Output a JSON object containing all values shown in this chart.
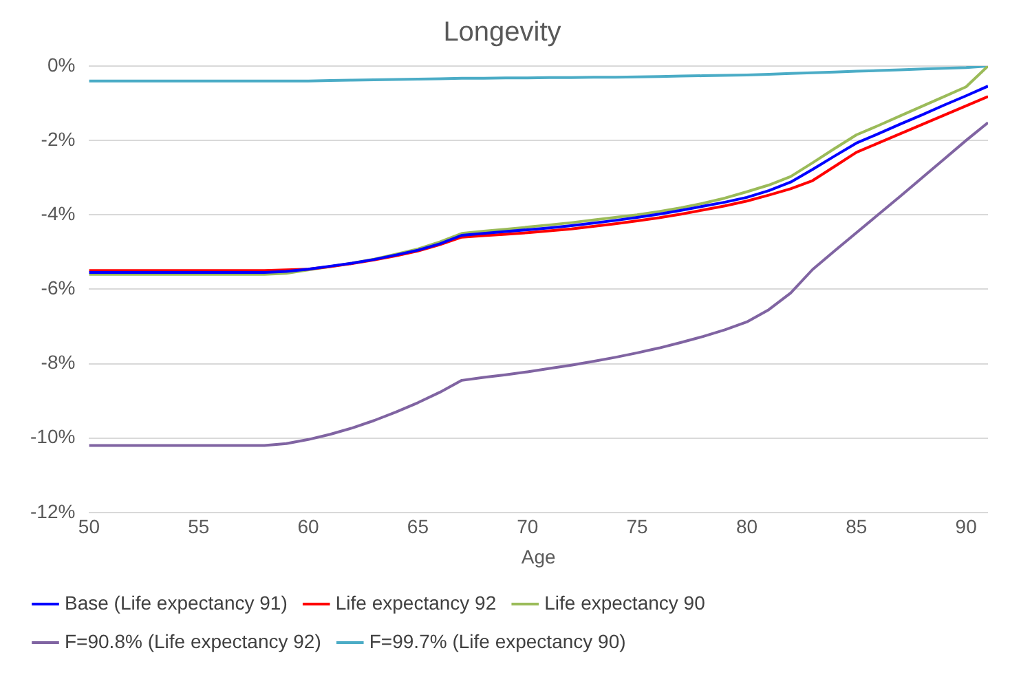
{
  "chart_data": {
    "type": "line",
    "title": "Longevity",
    "xlabel": "Age",
    "x": [
      50,
      51,
      52,
      53,
      54,
      55,
      56,
      57,
      58,
      59,
      60,
      61,
      62,
      63,
      64,
      65,
      66,
      67,
      68,
      69,
      70,
      71,
      72,
      73,
      74,
      75,
      76,
      77,
      78,
      79,
      80,
      81,
      82,
      83,
      84,
      85,
      86,
      87,
      88,
      89,
      90,
      91
    ],
    "series": [
      {
        "name": "Base (Life expectancy 91)",
        "color": "#0000ff",
        "values": [
          -5.55,
          -5.55,
          -5.55,
          -5.55,
          -5.55,
          -5.55,
          -5.55,
          -5.55,
          -5.55,
          -5.52,
          -5.46,
          -5.38,
          -5.3,
          -5.2,
          -5.08,
          -4.95,
          -4.78,
          -4.55,
          -4.5,
          -4.45,
          -4.4,
          -4.35,
          -4.29,
          -4.22,
          -4.15,
          -4.07,
          -3.98,
          -3.88,
          -3.77,
          -3.66,
          -3.53,
          -3.35,
          -3.12,
          -2.78,
          -2.42,
          -2.07,
          -1.82,
          -1.56,
          -1.31,
          -1.05,
          -0.8,
          -0.54
        ]
      },
      {
        "name": "Life expectancy 92",
        "color": "#ff0000",
        "values": [
          -5.5,
          -5.5,
          -5.5,
          -5.5,
          -5.5,
          -5.5,
          -5.5,
          -5.5,
          -5.5,
          -5.48,
          -5.46,
          -5.39,
          -5.31,
          -5.21,
          -5.1,
          -4.97,
          -4.8,
          -4.6,
          -4.56,
          -4.52,
          -4.48,
          -4.43,
          -4.38,
          -4.31,
          -4.24,
          -4.16,
          -4.08,
          -3.98,
          -3.87,
          -3.76,
          -3.63,
          -3.47,
          -3.3,
          -3.08,
          -2.7,
          -2.32,
          -2.07,
          -1.82,
          -1.57,
          -1.32,
          -1.07,
          -0.82
        ]
      },
      {
        "name": "Life expectancy 90",
        "color": "#9bbb59",
        "values": [
          -5.6,
          -5.6,
          -5.6,
          -5.6,
          -5.6,
          -5.6,
          -5.6,
          -5.6,
          -5.6,
          -5.57,
          -5.48,
          -5.39,
          -5.3,
          -5.19,
          -5.06,
          -4.92,
          -4.73,
          -4.5,
          -4.44,
          -4.39,
          -4.33,
          -4.27,
          -4.21,
          -4.14,
          -4.07,
          -4.0,
          -3.91,
          -3.81,
          -3.69,
          -3.55,
          -3.38,
          -3.2,
          -2.97,
          -2.6,
          -2.22,
          -1.85,
          -1.6,
          -1.34,
          -1.08,
          -0.82,
          -0.56,
          0
        ]
      },
      {
        "name": "F=90.8% (Life expectancy 92)",
        "color": "#8064a2",
        "values": [
          -10.2,
          -10.2,
          -10.2,
          -10.2,
          -10.2,
          -10.2,
          -10.2,
          -10.2,
          -10.2,
          -10.15,
          -10.04,
          -9.9,
          -9.73,
          -9.53,
          -9.3,
          -9.05,
          -8.77,
          -8.45,
          -8.37,
          -8.3,
          -8.22,
          -8.13,
          -8.04,
          -7.94,
          -7.83,
          -7.71,
          -7.58,
          -7.43,
          -7.27,
          -7.09,
          -6.88,
          -6.55,
          -6.1,
          -5.47,
          -4.97,
          -4.48,
          -3.99,
          -3.5,
          -3.0,
          -2.5,
          -2.0,
          -1.52
        ]
      },
      {
        "name": "F=99.7% (Life expectancy 90)",
        "color": "#4bacc6",
        "values": [
          -0.4,
          -0.4,
          -0.4,
          -0.4,
          -0.4,
          -0.4,
          -0.4,
          -0.4,
          -0.4,
          -0.4,
          -0.4,
          -0.39,
          -0.38,
          -0.37,
          -0.36,
          -0.35,
          -0.34,
          -0.33,
          -0.33,
          -0.32,
          -0.32,
          -0.31,
          -0.31,
          -0.3,
          -0.3,
          -0.29,
          -0.28,
          -0.27,
          -0.26,
          -0.25,
          -0.24,
          -0.22,
          -0.2,
          -0.18,
          -0.16,
          -0.14,
          -0.12,
          -0.1,
          -0.08,
          -0.06,
          -0.04,
          0
        ]
      }
    ],
    "xlim": [
      50,
      91
    ],
    "xticks": [
      50,
      55,
      60,
      65,
      70,
      75,
      80,
      85,
      90
    ],
    "ylim": [
      -12,
      0
    ],
    "yticks": [
      {
        "value": -12,
        "label": "-12%"
      },
      {
        "value": -10,
        "label": "-10%"
      },
      {
        "value": -8,
        "label": "-8%"
      },
      {
        "value": -6,
        "label": "-6%"
      },
      {
        "value": -4,
        "label": "-4%"
      },
      {
        "value": -2,
        "label": "-2%"
      },
      {
        "value": 0,
        "label": "0%"
      }
    ],
    "grid": "y",
    "legend": "bottom",
    "marker": "none",
    "line_style": "solid"
  }
}
